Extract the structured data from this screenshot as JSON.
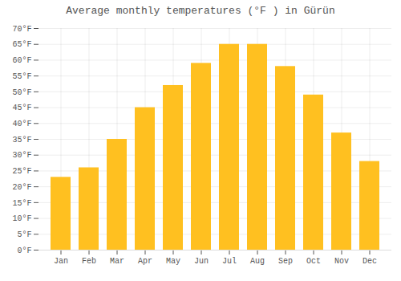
{
  "chart_data": {
    "type": "bar",
    "title": "Average monthly temperatures (°F ) in Gürün",
    "categories": [
      "Jan",
      "Feb",
      "Mar",
      "Apr",
      "May",
      "Jun",
      "Jul",
      "Aug",
      "Sep",
      "Oct",
      "Nov",
      "Dec"
    ],
    "values": [
      23,
      26,
      35,
      45,
      52,
      59,
      65,
      65,
      58,
      49,
      37,
      28
    ],
    "color": "#FFC020",
    "ylim": [
      0,
      70
    ],
    "yticks": [
      {
        "value": 0,
        "label": "0°F"
      },
      {
        "value": 5,
        "label": "5°F"
      },
      {
        "value": 10,
        "label": "10°F"
      },
      {
        "value": 15,
        "label": "15°F"
      },
      {
        "value": 20,
        "label": "20°F"
      },
      {
        "value": 25,
        "label": "25°F"
      },
      {
        "value": 30,
        "label": "30°F"
      },
      {
        "value": 35,
        "label": "35°F"
      },
      {
        "value": 40,
        "label": "40°F"
      },
      {
        "value": 45,
        "label": "45°F"
      },
      {
        "value": 50,
        "label": "50°F"
      },
      {
        "value": 55,
        "label": "55°F"
      },
      {
        "value": 60,
        "label": "60°F"
      },
      {
        "value": 65,
        "label": "65°F"
      },
      {
        "value": 70,
        "label": "70°F"
      }
    ],
    "grid": true
  }
}
